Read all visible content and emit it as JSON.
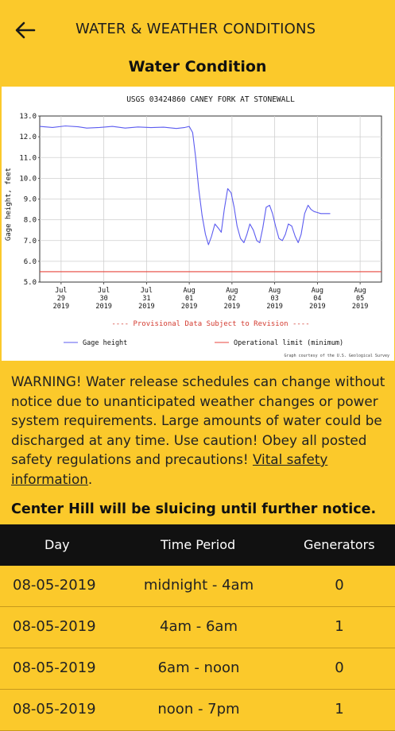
{
  "header": {
    "title": "WATER & WEATHER CONDITIONS"
  },
  "section_title": "Water Condition",
  "chart_data": {
    "type": "line",
    "title": "USGS 03424860 CANEY FORK AT STONEWALL",
    "ylabel": "Gage height, feet",
    "ylim": [
      5.0,
      13.0
    ],
    "yticks": [
      "13.0",
      "12.0",
      "11.0",
      "10.0",
      "9.0",
      "8.0",
      "7.0",
      "6.0",
      "5.0"
    ],
    "xticks": [
      [
        "Jul",
        "29",
        "2019"
      ],
      [
        "Jul",
        "30",
        "2019"
      ],
      [
        "Jul",
        "31",
        "2019"
      ],
      [
        "Aug",
        "01",
        "2019"
      ],
      [
        "Aug",
        "02",
        "2019"
      ],
      [
        "Aug",
        "03",
        "2019"
      ],
      [
        "Aug",
        "04",
        "2019"
      ],
      [
        "Aug",
        "05",
        "2019"
      ]
    ],
    "xlim": [
      0.0,
      8.0
    ],
    "grid": true,
    "provisional_note": "---- Provisional Data Subject to Revision ----",
    "credit": "Graph courtesy of the U.S. Geological Survey",
    "series": [
      {
        "name": "Gage height",
        "color": "#5b5bf0",
        "x": [
          0.0,
          0.3,
          0.6,
          0.9,
          1.1,
          1.4,
          1.7,
          2.0,
          2.3,
          2.6,
          2.9,
          3.2,
          3.4,
          3.5,
          3.58,
          3.65,
          3.72,
          3.8,
          3.88,
          3.95,
          4.02,
          4.1,
          4.18,
          4.25,
          4.32,
          4.4,
          4.48,
          4.55,
          4.62,
          4.7,
          4.78,
          4.85,
          4.92,
          5.0,
          5.08,
          5.15,
          5.22,
          5.3,
          5.38,
          5.45,
          5.52,
          5.6,
          5.68,
          5.75,
          5.82,
          5.9,
          5.98,
          6.05,
          6.12,
          6.2,
          6.28,
          6.35,
          6.42,
          6.5,
          6.58,
          6.65,
          6.72,
          6.8
        ],
        "y": [
          12.5,
          12.45,
          12.52,
          12.48,
          12.42,
          12.45,
          12.5,
          12.42,
          12.47,
          12.44,
          12.46,
          12.4,
          12.45,
          12.5,
          12.2,
          11.0,
          9.5,
          8.2,
          7.3,
          6.8,
          7.2,
          7.8,
          7.6,
          7.4,
          8.5,
          9.5,
          9.3,
          8.6,
          7.7,
          7.1,
          6.9,
          7.3,
          7.8,
          7.5,
          7.0,
          6.9,
          7.6,
          8.6,
          8.7,
          8.3,
          7.7,
          7.1,
          7.0,
          7.3,
          7.8,
          7.7,
          7.2,
          6.9,
          7.3,
          8.3,
          8.7,
          8.5,
          8.4,
          8.35,
          8.3,
          8.3,
          8.3,
          8.3
        ]
      },
      {
        "name": "Operational limit (minimum)",
        "color": "#e8463c",
        "x": [
          0.0,
          8.0
        ],
        "y": [
          5.5,
          5.5
        ]
      }
    ]
  },
  "warning": {
    "title": "WARNING!",
    "body": " Water release schedules can change without notice due to unanticipated weather changes or power system requirements. Large amounts of water could be discharged at any time. Use caution! Obey all posted safety regulations and precautions! ",
    "link": "Vital safety information",
    "end": "."
  },
  "notice": "Center Hill will be sluicing until further notice.",
  "table": {
    "headers": [
      "Day",
      "Time Period",
      "Generators"
    ],
    "rows": [
      [
        "08-05-2019",
        "midnight - 4am",
        "0"
      ],
      [
        "08-05-2019",
        "4am - 6am",
        "1"
      ],
      [
        "08-05-2019",
        "6am - noon",
        "0"
      ],
      [
        "08-05-2019",
        "noon - 7pm",
        "1"
      ]
    ]
  }
}
